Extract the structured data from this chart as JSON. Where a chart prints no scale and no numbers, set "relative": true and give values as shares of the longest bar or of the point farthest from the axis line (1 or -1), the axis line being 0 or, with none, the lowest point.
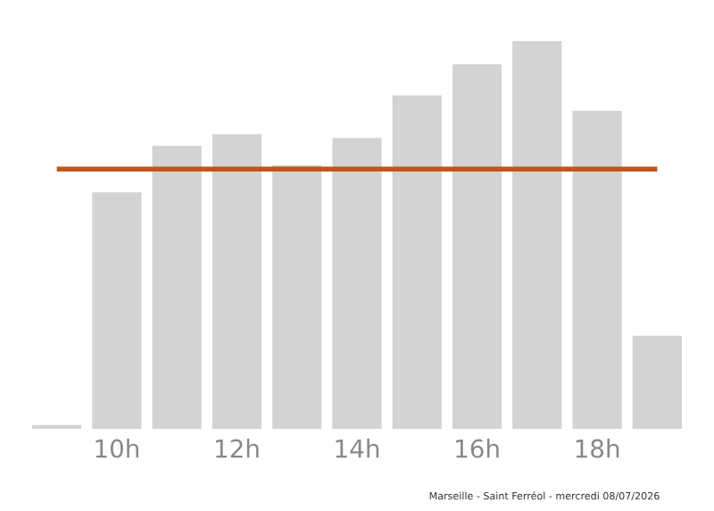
{
  "chart_data": {
    "type": "bar",
    "relative": true,
    "categories": [
      null,
      "10h",
      null,
      "12h",
      null,
      "14h",
      null,
      "16h",
      null,
      "18h",
      null
    ],
    "values": [
      0.01,
      0.61,
      0.73,
      0.76,
      0.68,
      0.75,
      0.86,
      0.94,
      1,
      0.82,
      0.24
    ],
    "color": "#d3d3d3",
    "ref_lines": [
      {
        "axis": "y",
        "value": 0.67,
        "color": "#c0561a"
      }
    ],
    "annotations": [
      "Marseille - Saint Ferréol - mercredi 08/07/2026"
    ],
    "grid": false,
    "legend": false
  }
}
